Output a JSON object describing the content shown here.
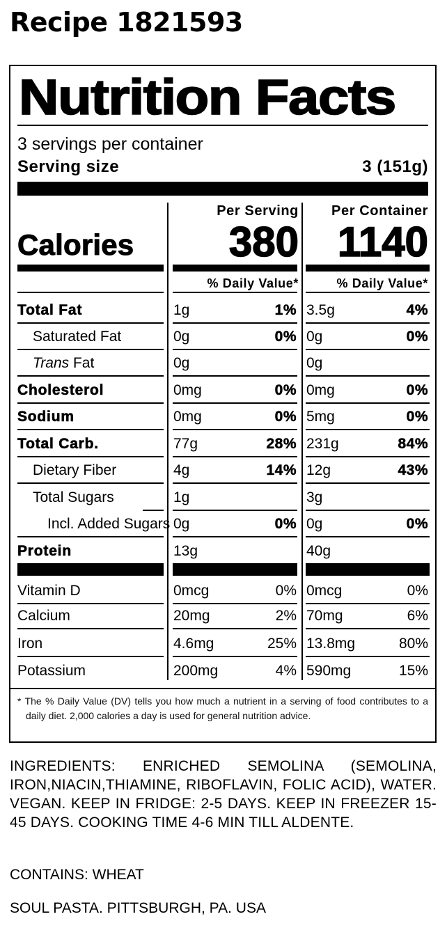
{
  "recipe_title": "Recipe 1821593",
  "label": {
    "title": "Nutrition Facts",
    "servings_per_container": "3 servings per container",
    "serving_size_label": "Serving size",
    "serving_size_value": "3 (151g)",
    "per_serving_header": "Per Serving",
    "per_container_header": "Per Container",
    "calories_label": "Calories",
    "calories_per_serving": "380",
    "calories_per_container": "1140",
    "dv_header": "% Daily Value*",
    "nutrients": [
      {
        "name": "Total Fat",
        "serving_amount": "1g",
        "serving_dv": "1%",
        "container_amount": "3.5g",
        "container_dv": "4%"
      },
      {
        "name": "Saturated Fat",
        "serving_amount": "0g",
        "serving_dv": "0%",
        "container_amount": "0g",
        "container_dv": "0%"
      },
      {
        "name_italic": "Trans",
        "name_rest": " Fat",
        "serving_amount": "0g",
        "serving_dv": "",
        "container_amount": "0g",
        "container_dv": ""
      },
      {
        "name": "Cholesterol",
        "serving_amount": "0mg",
        "serving_dv": "0%",
        "container_amount": "0mg",
        "container_dv": "0%"
      },
      {
        "name": "Sodium",
        "serving_amount": "0mg",
        "serving_dv": "0%",
        "container_amount": "5mg",
        "container_dv": "0%"
      },
      {
        "name": "Total Carb.",
        "serving_amount": "77g",
        "serving_dv": "28%",
        "container_amount": "231g",
        "container_dv": "84%"
      },
      {
        "name": "Dietary Fiber",
        "serving_amount": "4g",
        "serving_dv": "14%",
        "container_amount": "12g",
        "container_dv": "43%"
      },
      {
        "name": "Total Sugars",
        "serving_amount": "1g",
        "serving_dv": "",
        "container_amount": "3g",
        "container_dv": ""
      },
      {
        "name": "Incl. Added Sugars",
        "serving_amount": "0g",
        "serving_dv": "0%",
        "container_amount": "0g",
        "container_dv": "0%"
      },
      {
        "name": "Protein",
        "serving_amount": "13g",
        "serving_dv": "",
        "container_amount": "40g",
        "container_dv": ""
      }
    ],
    "vitamins": [
      {
        "name": "Vitamin D",
        "serving_amount": "0mcg",
        "serving_dv": "0%",
        "container_amount": "0mcg",
        "container_dv": "0%"
      },
      {
        "name": "Calcium",
        "serving_amount": "20mg",
        "serving_dv": "2%",
        "container_amount": "70mg",
        "container_dv": "6%"
      },
      {
        "name": "Iron",
        "serving_amount": "4.6mg",
        "serving_dv": "25%",
        "container_amount": "13.8mg",
        "container_dv": "80%"
      },
      {
        "name": "Potassium",
        "serving_amount": "200mg",
        "serving_dv": "4%",
        "container_amount": "590mg",
        "container_dv": "15%"
      }
    ],
    "footnote": "* The % Daily Value (DV) tells you how much a nutrient in a serving of food contributes to a daily diet. 2,000 calories a day is used for general nutrition advice."
  },
  "ingredients": "INGREDIENTS: ENRICHED SEMOLINA (SEMOLINA, IRON,NIACIN,THIAMINE, RIBOFLAVIN, FOLIC ACID), WATER. VEGAN. KEEP IN FRIDGE: 2-5 DAYS. KEEP IN FREEZER 15-45 DAYS. COOKING TIME 4-6 MIN TILL ALDENTE.",
  "contains": "CONTAINS: WHEAT",
  "manufacturer": "SOUL PASTA. PITTSBURGH, PA. USA"
}
